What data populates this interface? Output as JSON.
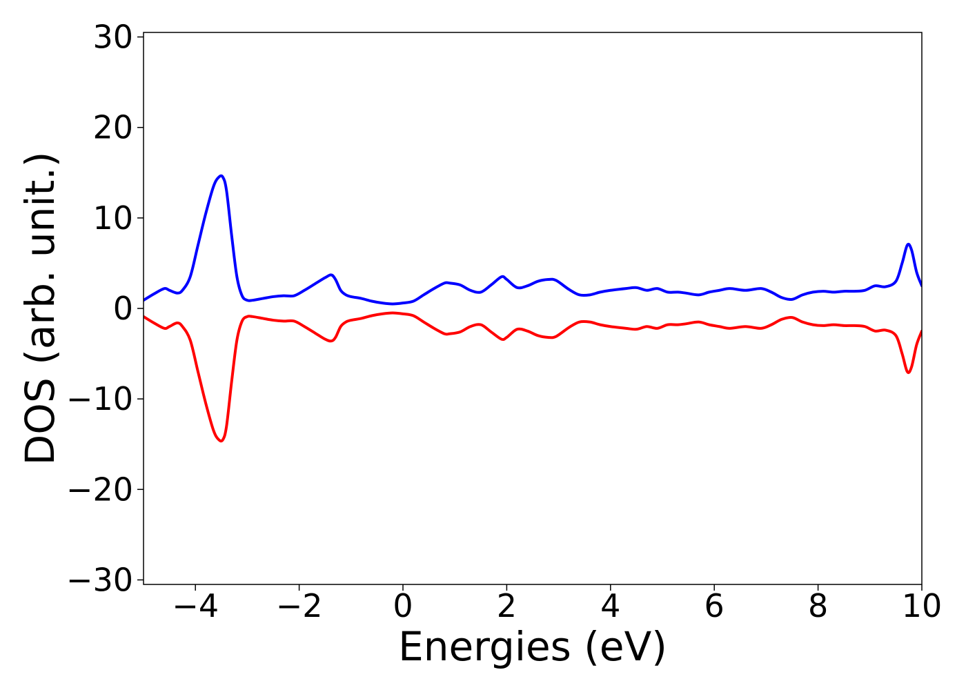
{
  "chart_data": {
    "type": "line",
    "xlabel": "Energies (eV)",
    "ylabel": "DOS (arb. unit.)",
    "xlim": [
      -5,
      10
    ],
    "ylim": [
      -30.5,
      30.5
    ],
    "xticks": [
      -4,
      -2,
      0,
      2,
      4,
      6,
      8,
      10
    ],
    "xtick_labels": [
      "−4",
      "−2",
      "0",
      "2",
      "4",
      "6",
      "8",
      "10"
    ],
    "yticks": [
      -30,
      -20,
      -10,
      0,
      10,
      20,
      30
    ],
    "ytick_labels": [
      "−30",
      "−20",
      "−10",
      "0",
      "10",
      "20",
      "30"
    ],
    "grid": false,
    "series": [
      {
        "color": "#0000ff",
        "x": [
          -5.0,
          -4.8,
          -4.6,
          -4.5,
          -4.35,
          -4.25,
          -4.1,
          -3.95,
          -3.8,
          -3.65,
          -3.55,
          -3.47,
          -3.4,
          -3.3,
          -3.2,
          -3.1,
          -3.0,
          -2.9,
          -2.7,
          -2.5,
          -2.3,
          -2.1,
          -1.9,
          -1.7,
          -1.5,
          -1.38,
          -1.3,
          -1.2,
          -1.1,
          -1.0,
          -0.8,
          -0.6,
          -0.4,
          -0.2,
          0.0,
          0.2,
          0.4,
          0.6,
          0.8,
          0.9,
          1.1,
          1.3,
          1.5,
          1.7,
          1.9,
          2.0,
          2.2,
          2.4,
          2.6,
          2.8,
          2.95,
          3.2,
          3.4,
          3.6,
          3.8,
          4.0,
          4.3,
          4.5,
          4.7,
          4.9,
          5.1,
          5.3,
          5.45,
          5.7,
          5.9,
          6.1,
          6.3,
          6.6,
          6.9,
          7.1,
          7.3,
          7.5,
          7.7,
          7.9,
          8.1,
          8.3,
          8.5,
          8.7,
          8.9,
          9.1,
          9.3,
          9.5,
          9.62,
          9.72,
          9.8,
          9.9,
          10.0
        ],
        "y": [
          0.9,
          1.6,
          2.2,
          2.0,
          1.7,
          2.0,
          3.5,
          7.0,
          10.5,
          13.5,
          14.5,
          14.5,
          13.0,
          8.0,
          3.5,
          1.4,
          0.9,
          0.9,
          1.1,
          1.3,
          1.4,
          1.4,
          2.0,
          2.7,
          3.4,
          3.7,
          3.2,
          2.0,
          1.5,
          1.3,
          1.1,
          0.8,
          0.6,
          0.5,
          0.6,
          0.8,
          1.5,
          2.2,
          2.8,
          2.8,
          2.6,
          2.0,
          1.8,
          2.6,
          3.5,
          3.2,
          2.3,
          2.5,
          3.0,
          3.2,
          3.1,
          2.1,
          1.5,
          1.5,
          1.8,
          2.0,
          2.2,
          2.3,
          2.0,
          2.2,
          1.8,
          1.8,
          1.7,
          1.5,
          1.8,
          2.0,
          2.2,
          2.0,
          2.2,
          1.8,
          1.2,
          1.0,
          1.5,
          1.8,
          1.9,
          1.8,
          1.9,
          1.9,
          2.0,
          2.5,
          2.4,
          3.0,
          5.0,
          7.0,
          6.5,
          4.0,
          2.5
        ]
      },
      {
        "color": "#ff0000",
        "x": [
          -5.0,
          -4.8,
          -4.6,
          -4.5,
          -4.35,
          -4.25,
          -4.1,
          -3.95,
          -3.8,
          -3.65,
          -3.55,
          -3.47,
          -3.4,
          -3.3,
          -3.2,
          -3.1,
          -3.0,
          -2.9,
          -2.7,
          -2.5,
          -2.3,
          -2.1,
          -1.9,
          -1.7,
          -1.5,
          -1.38,
          -1.3,
          -1.2,
          -1.1,
          -1.0,
          -0.8,
          -0.6,
          -0.4,
          -0.2,
          0.0,
          0.2,
          0.4,
          0.6,
          0.8,
          0.9,
          1.1,
          1.3,
          1.5,
          1.7,
          1.9,
          2.0,
          2.2,
          2.4,
          2.6,
          2.8,
          2.95,
          3.2,
          3.4,
          3.6,
          3.8,
          4.0,
          4.3,
          4.5,
          4.7,
          4.9,
          5.1,
          5.3,
          5.45,
          5.7,
          5.9,
          6.1,
          6.3,
          6.6,
          6.9,
          7.1,
          7.3,
          7.5,
          7.7,
          7.9,
          8.1,
          8.3,
          8.5,
          8.7,
          8.9,
          9.1,
          9.3,
          9.5,
          9.62,
          9.72,
          9.8,
          9.9,
          10.0
        ],
        "y": [
          -0.9,
          -1.6,
          -2.2,
          -2.0,
          -1.6,
          -2.0,
          -3.5,
          -7.0,
          -10.5,
          -13.5,
          -14.5,
          -14.5,
          -13.0,
          -8.0,
          -3.5,
          -1.4,
          -0.9,
          -0.9,
          -1.1,
          -1.3,
          -1.4,
          -1.4,
          -2.0,
          -2.7,
          -3.4,
          -3.6,
          -3.2,
          -2.0,
          -1.5,
          -1.3,
          -1.1,
          -0.8,
          -0.6,
          -0.5,
          -0.6,
          -0.8,
          -1.5,
          -2.2,
          -2.8,
          -2.8,
          -2.6,
          -2.0,
          -1.8,
          -2.6,
          -3.4,
          -3.2,
          -2.3,
          -2.5,
          -3.0,
          -3.2,
          -3.1,
          -2.1,
          -1.5,
          -1.5,
          -1.8,
          -2.0,
          -2.2,
          -2.3,
          -2.0,
          -2.2,
          -1.8,
          -1.8,
          -1.7,
          -1.5,
          -1.8,
          -2.0,
          -2.2,
          -2.0,
          -2.2,
          -1.8,
          -1.2,
          -1.0,
          -1.5,
          -1.8,
          -1.9,
          -1.8,
          -1.9,
          -1.9,
          -2.0,
          -2.5,
          -2.4,
          -3.0,
          -5.0,
          -7.0,
          -6.5,
          -4.0,
          -2.5
        ]
      }
    ]
  }
}
